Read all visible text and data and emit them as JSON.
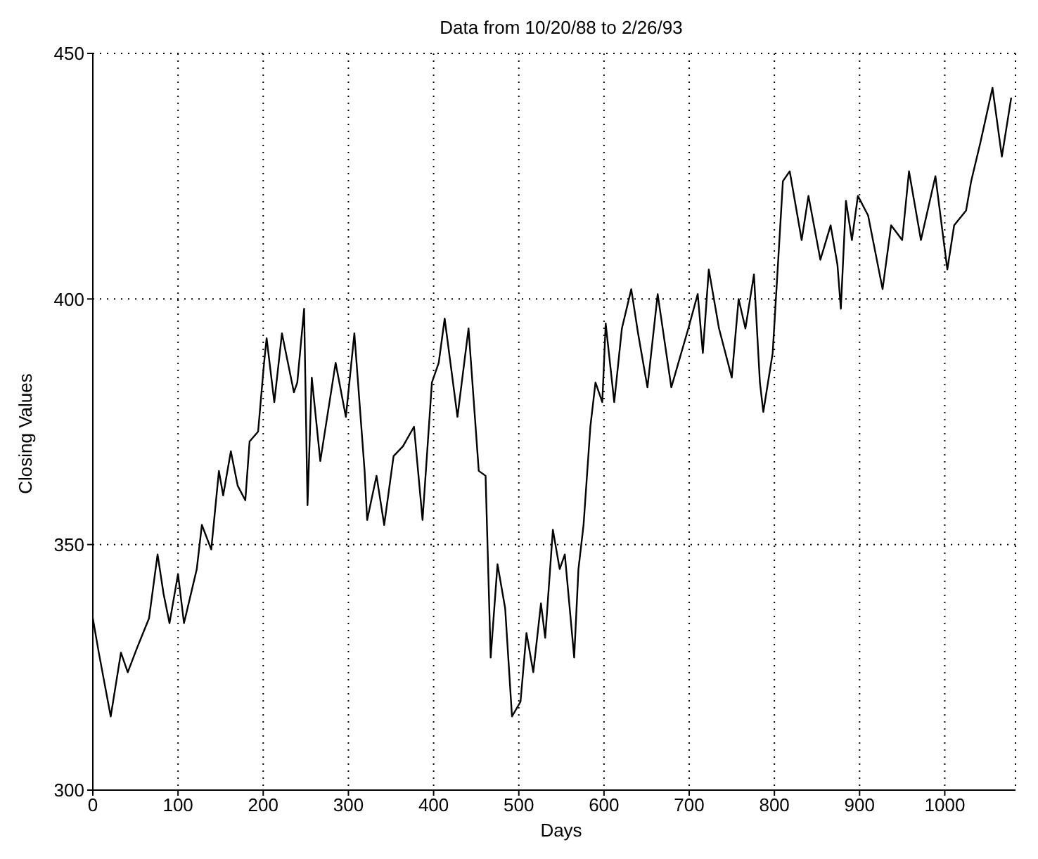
{
  "chart_data": {
    "type": "line",
    "title": "Data from 10/20/88 to 2/26/93",
    "xlabel": "Days",
    "ylabel": "Closing Values",
    "x": [
      0,
      7,
      21,
      33,
      41,
      52,
      66,
      76,
      83,
      90,
      100,
      107,
      122,
      128,
      139,
      148,
      153,
      162,
      170,
      179,
      184,
      194,
      201,
      204,
      213,
      222,
      236,
      240,
      248,
      252,
      257,
      267,
      285,
      297,
      307,
      319,
      322,
      333,
      342,
      353,
      364,
      377,
      387,
      398,
      406,
      413,
      428,
      441,
      453,
      461,
      467,
      475,
      484,
      492,
      502,
      509,
      517,
      526,
      531,
      540,
      548,
      554,
      565,
      570,
      576,
      584,
      590,
      598,
      602,
      612,
      621,
      632,
      640,
      651,
      663,
      679,
      699,
      710,
      716,
      723,
      735,
      750,
      758,
      766,
      776,
      783,
      787,
      798,
      810,
      818,
      832,
      840,
      854,
      866,
      874,
      878,
      884,
      891,
      898,
      910,
      927,
      937,
      950,
      958,
      972,
      989,
      1003,
      1011,
      1025,
      1031,
      1042,
      1056,
      1067,
      1078
    ],
    "series": [
      {
        "color": "#000000",
        "values": [
          335,
          328,
          315,
          328,
          324,
          329,
          335,
          348,
          340,
          334,
          344,
          334,
          345,
          354,
          349,
          365,
          360,
          369,
          362,
          359,
          371,
          373,
          387,
          392,
          379,
          393,
          381,
          383,
          398,
          358,
          384,
          367,
          387,
          376,
          393,
          365,
          355,
          364,
          354,
          368,
          370,
          374,
          355,
          383,
          387,
          396,
          376,
          394,
          365,
          364,
          327,
          346,
          337,
          315,
          318,
          332,
          324,
          338,
          331,
          353,
          345,
          348,
          327,
          345,
          354,
          374,
          383,
          379,
          395,
          379,
          394,
          402,
          393,
          382,
          401,
          382,
          394,
          401,
          389,
          406,
          394,
          384,
          400,
          394,
          405,
          383,
          377,
          389,
          424,
          426,
          412,
          421,
          408,
          415,
          407,
          398,
          420,
          412,
          421,
          417,
          402,
          415,
          412,
          426,
          412,
          425,
          406,
          415,
          418,
          424,
          432,
          443,
          429,
          441
        ]
      }
    ],
    "xlim": [
      0,
      1083
    ],
    "xticks": [
      0,
      100,
      200,
      300,
      400,
      500,
      600,
      700,
      800,
      900,
      1000
    ],
    "ylim": [
      300,
      450
    ],
    "yticks": [
      300,
      350,
      400,
      450
    ],
    "grid": true,
    "marker": "none",
    "line_style": "solid"
  }
}
